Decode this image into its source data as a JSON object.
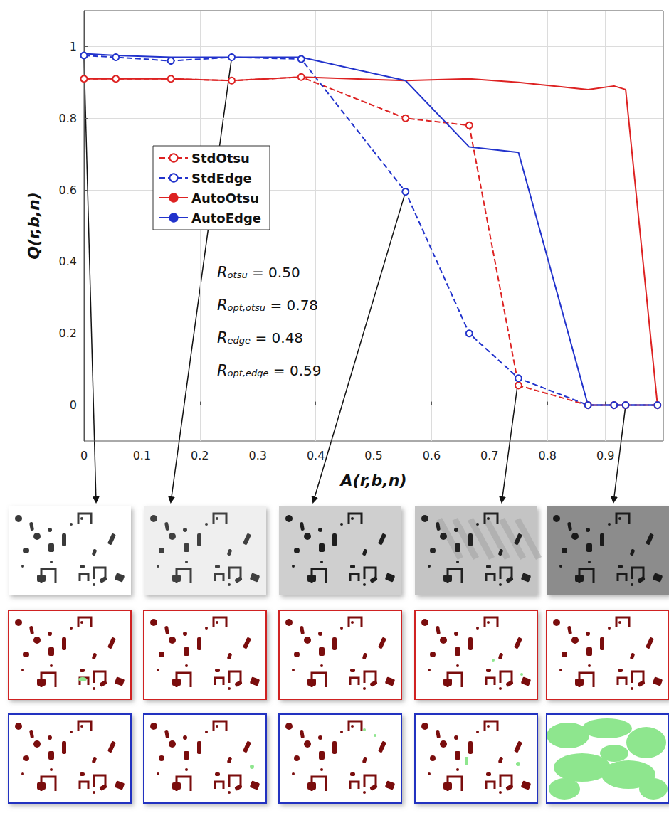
{
  "chart_data": {
    "type": "line",
    "x_label": "A(r,b,n)",
    "y_label": "Q(r,b,n)",
    "xlim": [
      0,
      1
    ],
    "xticks": [
      0,
      0.1,
      0.2,
      0.3,
      0.4,
      0.5,
      0.6,
      0.7,
      0.8,
      0.9
    ],
    "ylim": [
      -0.1,
      1.1
    ],
    "yticks": [
      0,
      0.2,
      0.4,
      0.6,
      0.8,
      1
    ],
    "grid": true,
    "legend": "upper left",
    "x": [
      0,
      0.055,
      0.15,
      0.255,
      0.375,
      0.555,
      0.665,
      0.75,
      0.87,
      0.915,
      0.935,
      0.99
    ],
    "series": [
      {
        "name": "StdOtsu",
        "color": "#dd2222",
        "line_style": "dashed",
        "marker": "circle",
        "values": [
          0.91,
          0.91,
          0.91,
          0.905,
          0.915,
          0.8,
          0.78,
          0.055,
          0.0,
          0.0,
          0.0,
          0.0
        ]
      },
      {
        "name": "StdEdge",
        "color": "#2233cc",
        "line_style": "dashed",
        "marker": "circle",
        "values": [
          0.975,
          0.97,
          0.96,
          0.97,
          0.965,
          0.595,
          0.2,
          0.075,
          0.0,
          0.0,
          0.0,
          0.0
        ]
      },
      {
        "name": "AutoOtsu",
        "color": "#dd2222",
        "line_style": "solid",
        "marker": "none",
        "values": [
          0.91,
          0.91,
          0.91,
          0.905,
          0.915,
          0.905,
          0.91,
          0.9,
          0.88,
          0.89,
          0.88,
          0.0
        ]
      },
      {
        "name": "AutoEdge",
        "color": "#2233cc",
        "line_style": "solid",
        "marker": "none",
        "values": [
          0.98,
          0.975,
          0.97,
          0.97,
          0.97,
          0.905,
          0.72,
          0.705,
          0.0,
          0.0,
          0.0,
          0.0
        ]
      }
    ],
    "annotations": [
      {
        "symbol": "R",
        "subscript": "otsu",
        "value": 0.5,
        "label": "= 0.50"
      },
      {
        "symbol": "R",
        "subscript": "opt,otsu",
        "value": 0.78,
        "label": "= 0.78"
      },
      {
        "symbol": "R",
        "subscript": "edge",
        "value": 0.48,
        "label": "= 0.48"
      },
      {
        "symbol": "R",
        "subscript": "opt,edge",
        "value": 0.59,
        "label": "= 0.59"
      }
    ]
  }
}
